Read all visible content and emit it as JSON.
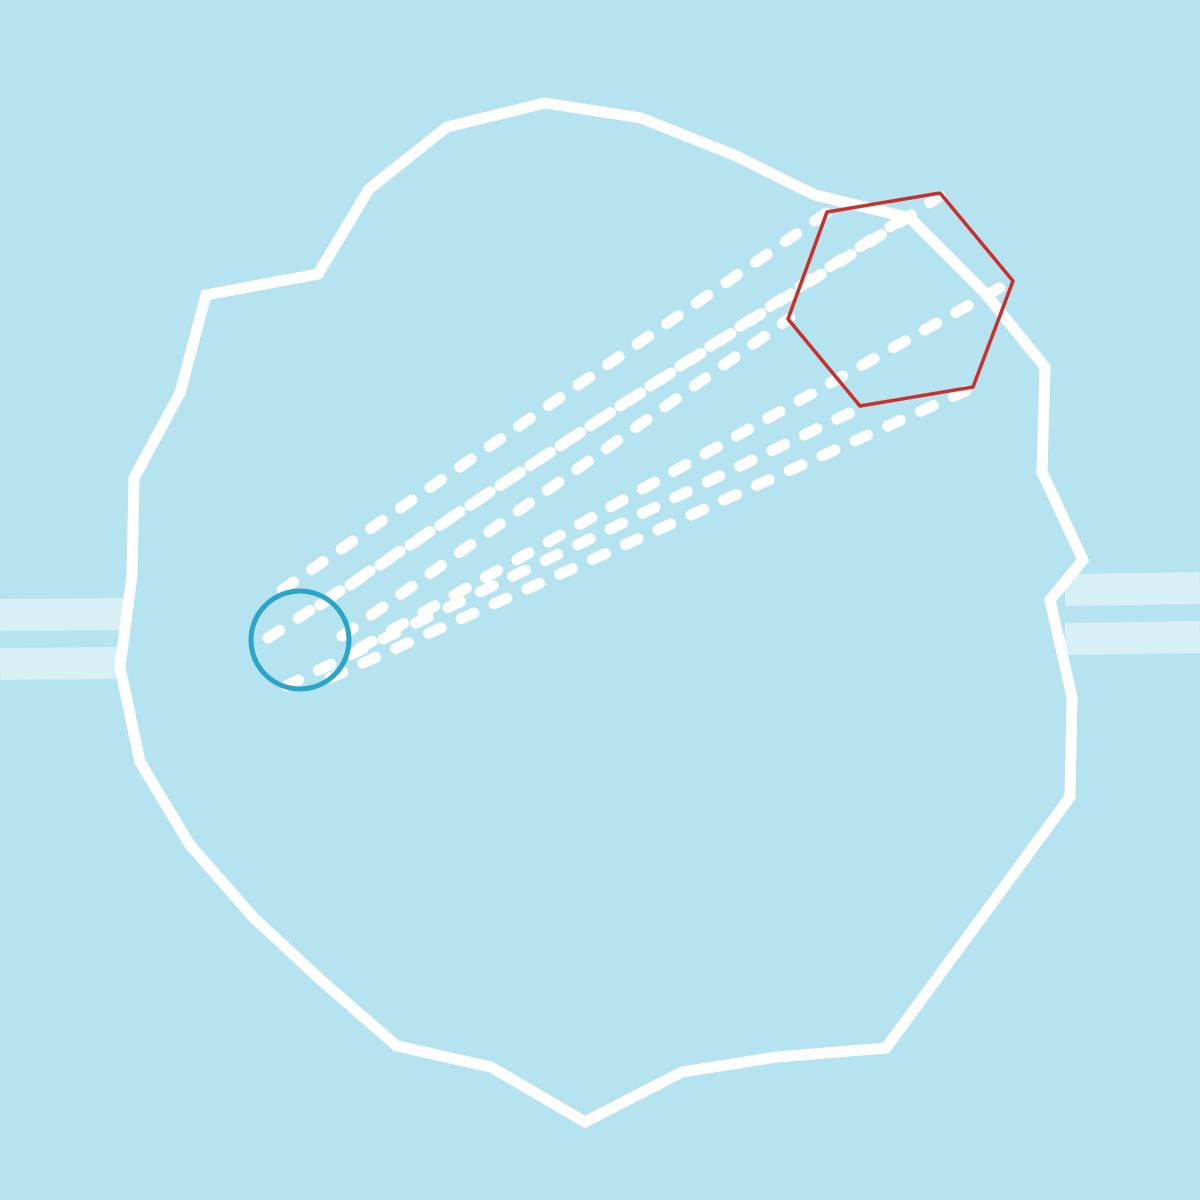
{
  "scene": {
    "background_color": "#b5e3ef",
    "boundary_color": "#ffffff",
    "trail_color": "#ffffff",
    "edge_marker_color": "#d6f0f6",
    "player_color": "#2aa5c9",
    "target_color": "#c8302e"
  },
  "elements": {
    "arena_boundary": "arena-boundary",
    "player": "player-circle",
    "target": "target-hexagon",
    "dash_trails": "dash-trails",
    "left_exit": "left-exit-marker",
    "right_exit": "right-exit-marker"
  }
}
